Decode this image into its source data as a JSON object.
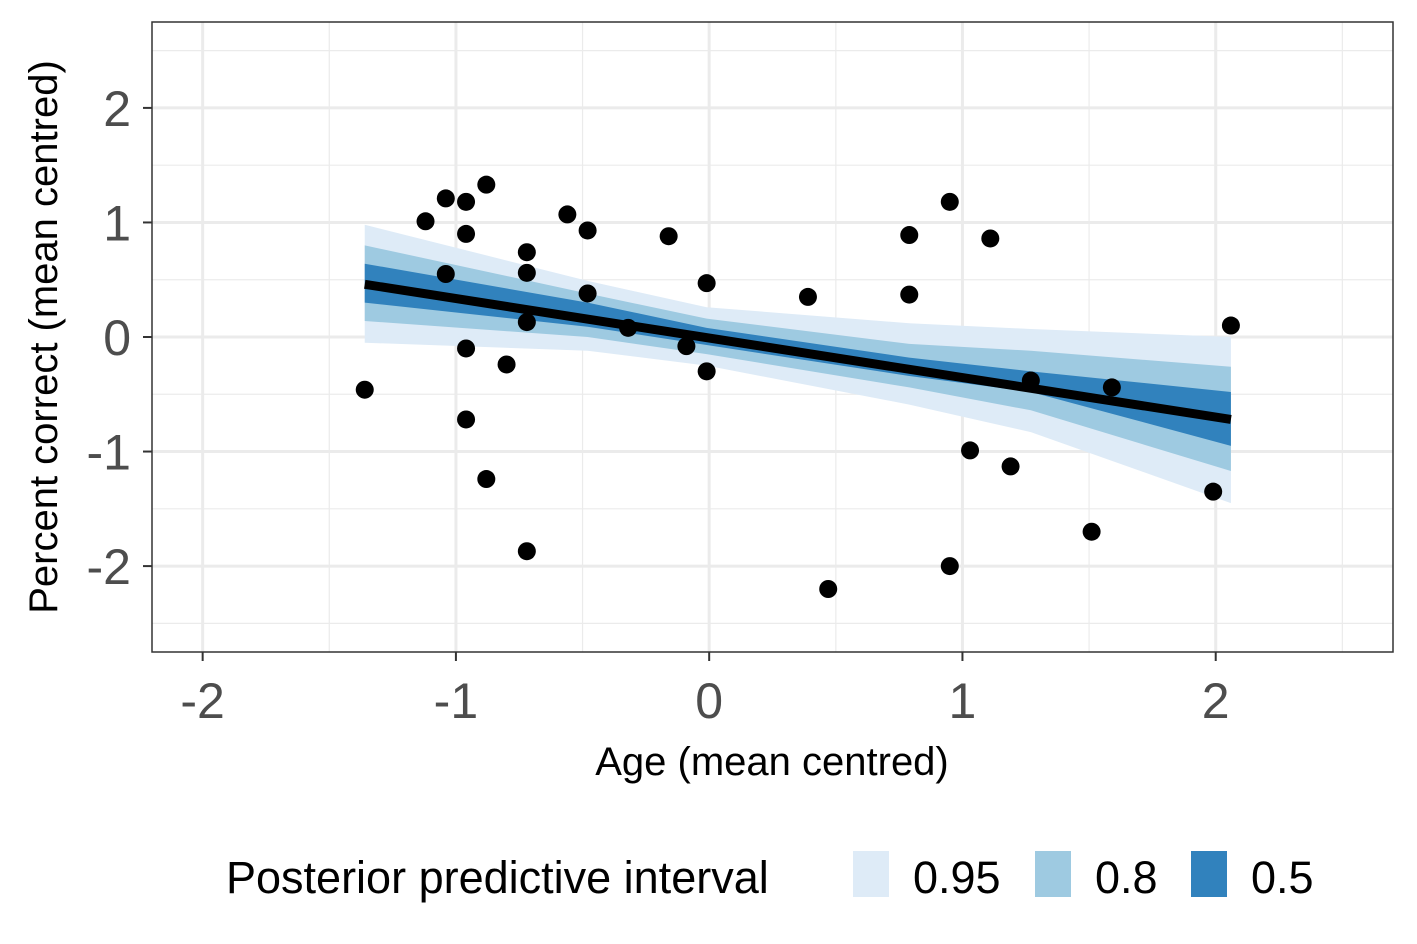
{
  "chart_data": {
    "type": "scatter",
    "title": "",
    "xlabel": "Age (mean centred)",
    "ylabel": "Percent correct (mean centred)",
    "xlim": [
      -2.2,
      2.7
    ],
    "ylim": [
      -2.75,
      2.75
    ],
    "x_ticks": [
      -2,
      -1,
      0,
      1,
      2
    ],
    "x_tick_labels": [
      "-2",
      "-1",
      "0",
      "1",
      "2"
    ],
    "y_ticks": [
      -2,
      -1,
      0,
      1,
      2
    ],
    "y_tick_labels": [
      "-2",
      "-1",
      "0",
      "1",
      "2"
    ],
    "grid": true,
    "points": [
      {
        "x": -1.36,
        "y": -0.46
      },
      {
        "x": -1.12,
        "y": 1.01
      },
      {
        "x": -1.04,
        "y": 1.21
      },
      {
        "x": -1.04,
        "y": 0.55
      },
      {
        "x": -0.96,
        "y": 1.18
      },
      {
        "x": -0.96,
        "y": 0.9
      },
      {
        "x": -0.96,
        "y": -0.1
      },
      {
        "x": -0.96,
        "y": -0.72
      },
      {
        "x": -0.88,
        "y": 1.33
      },
      {
        "x": -0.88,
        "y": -1.24
      },
      {
        "x": -0.8,
        "y": -0.24
      },
      {
        "x": -0.72,
        "y": 0.74
      },
      {
        "x": -0.72,
        "y": 0.56
      },
      {
        "x": -0.72,
        "y": 0.13
      },
      {
        "x": -0.72,
        "y": -1.87
      },
      {
        "x": -0.56,
        "y": 1.07
      },
      {
        "x": -0.48,
        "y": 0.93
      },
      {
        "x": -0.48,
        "y": 0.38
      },
      {
        "x": -0.32,
        "y": 0.08
      },
      {
        "x": -0.16,
        "y": 0.88
      },
      {
        "x": -0.09,
        "y": -0.08
      },
      {
        "x": -0.01,
        "y": 0.47
      },
      {
        "x": -0.01,
        "y": -0.3
      },
      {
        "x": 0.39,
        "y": 0.35
      },
      {
        "x": 0.47,
        "y": -2.2
      },
      {
        "x": 0.79,
        "y": 0.89
      },
      {
        "x": 0.79,
        "y": 0.37
      },
      {
        "x": 0.95,
        "y": 1.18
      },
      {
        "x": 0.95,
        "y": -2.0
      },
      {
        "x": 1.03,
        "y": -0.99
      },
      {
        "x": 1.11,
        "y": 0.86
      },
      {
        "x": 1.19,
        "y": -1.13
      },
      {
        "x": 1.27,
        "y": -0.38
      },
      {
        "x": 1.51,
        "y": -1.7
      },
      {
        "x": 1.59,
        "y": -0.44
      },
      {
        "x": 1.99,
        "y": -1.35
      },
      {
        "x": 2.06,
        "y": 0.1
      }
    ],
    "fit_line": {
      "x": [
        -1.36,
        2.06
      ],
      "y": [
        0.46,
        -0.72
      ]
    },
    "intervals": [
      {
        "level": "0.95",
        "color": "#deebf7",
        "x": [
          -1.36,
          -0.48,
          -0.01,
          0.79,
          1.27,
          2.06
        ],
        "upper": [
          0.98,
          0.49,
          0.26,
          0.12,
          0.07,
          0.0
        ],
        "lower": [
          -0.05,
          -0.12,
          -0.25,
          -0.59,
          -0.83,
          -1.45
        ]
      },
      {
        "level": "0.8",
        "color": "#9ecae1",
        "x": [
          -1.36,
          -0.48,
          -0.01,
          0.79,
          1.27,
          2.06
        ],
        "upper": [
          0.8,
          0.38,
          0.16,
          -0.06,
          -0.12,
          -0.26
        ],
        "lower": [
          0.14,
          0.0,
          -0.15,
          -0.44,
          -0.64,
          -1.17
        ]
      },
      {
        "level": "0.5",
        "color": "#3182bd",
        "x": [
          -1.36,
          -0.48,
          -0.01,
          0.79,
          1.27,
          2.06
        ],
        "upper": [
          0.64,
          0.3,
          0.08,
          -0.18,
          -0.3,
          -0.48
        ],
        "lower": [
          0.3,
          0.09,
          -0.07,
          -0.34,
          -0.48,
          -0.95
        ]
      }
    ],
    "legend": {
      "title": "Posterior predictive interval",
      "placement": "bottom",
      "items": [
        {
          "label": "0.95",
          "color": "#deebf7"
        },
        {
          "label": "0.8",
          "color": "#9ecae1"
        },
        {
          "label": "0.5",
          "color": "#3182bd"
        }
      ]
    }
  }
}
